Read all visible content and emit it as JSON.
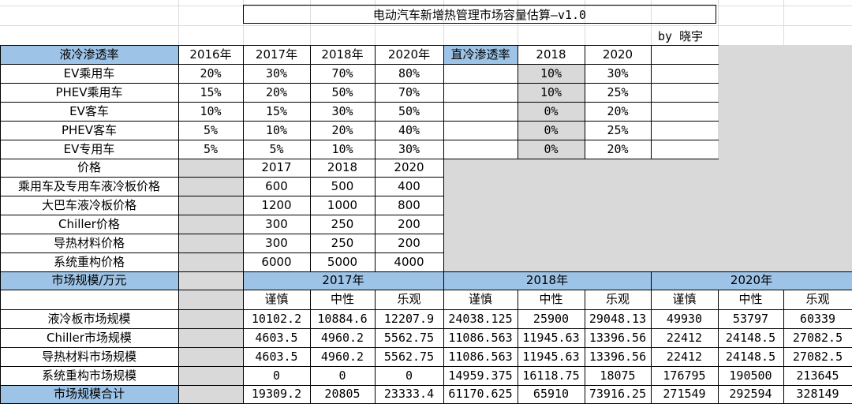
{
  "sheet": {
    "title": "电动汽车新增热管理市场容量估算—v1.0",
    "author": "by 晓宇",
    "liquid": {
      "header": [
        "液冷渗透率",
        "2016年",
        "2017年",
        "2018年",
        "2020年"
      ],
      "rows": [
        [
          "EV乘用车",
          "20%",
          "30%",
          "70%",
          "80%"
        ],
        [
          "PHEV乘用车",
          "15%",
          "20%",
          "50%",
          "70%"
        ],
        [
          "EV客车",
          "10%",
          "15%",
          "30%",
          "50%"
        ],
        [
          "PHEV客车",
          "5%",
          "10%",
          "20%",
          "40%"
        ],
        [
          "EV专用车",
          "5%",
          "5%",
          "10%",
          "30%"
        ]
      ]
    },
    "direct": {
      "header": [
        "直冷渗透率",
        "2018",
        "2020"
      ],
      "rows": [
        [
          "10%",
          "30%"
        ],
        [
          "10%",
          "25%"
        ],
        [
          "0%",
          "20%"
        ],
        [
          "0%",
          "25%"
        ],
        [
          "0%",
          "20%"
        ]
      ]
    },
    "price": {
      "header": [
        "价格",
        "2017",
        "2018",
        "2020"
      ],
      "rows": [
        [
          "乘用车及专用车液冷板价格",
          "600",
          "500",
          "400"
        ],
        [
          "大巴车液冷板价格",
          "1200",
          "1000",
          "800"
        ],
        [
          "Chiller价格",
          "300",
          "250",
          "200"
        ],
        [
          "导热材料价格",
          "300",
          "250",
          "200"
        ],
        [
          "系统重构价格",
          "6000",
          "5000",
          "4000"
        ]
      ]
    },
    "market": {
      "title": "市场规模/万元",
      "years": [
        "2017年",
        "2018年",
        "2020年"
      ],
      "scenarios": [
        "谨慎",
        "中性",
        "乐观",
        "谨慎",
        "中性",
        "乐观",
        "谨慎",
        "中性",
        "乐观"
      ],
      "rows": [
        {
          "label": "液冷板市场规模",
          "values": [
            "10102.2",
            "10884.6",
            "12207.9",
            "24038.125",
            "25900",
            "29048.13",
            "49930",
            "53797",
            "60339"
          ]
        },
        {
          "label": "Chiller市场规模",
          "values": [
            "4603.5",
            "4960.2",
            "5562.75",
            "11086.563",
            "11945.63",
            "13396.56",
            "22412",
            "24148.5",
            "27082.5"
          ]
        },
        {
          "label": "导热材料市场规模",
          "values": [
            "4603.5",
            "4960.2",
            "5562.75",
            "11086.563",
            "11945.63",
            "13396.56",
            "22412",
            "24148.5",
            "27082.5"
          ]
        },
        {
          "label": "系统重构市场规模",
          "values": [
            "0",
            "0",
            "0",
            "14959.375",
            "16118.75",
            "18075",
            "176795",
            "190500",
            "213645"
          ]
        }
      ],
      "total": {
        "label": "市场规模合计",
        "values": [
          "19309.2",
          "20805",
          "23333.4",
          "61170.625",
          "65910",
          "73916.25",
          "271549",
          "292594",
          "328149"
        ]
      }
    }
  }
}
